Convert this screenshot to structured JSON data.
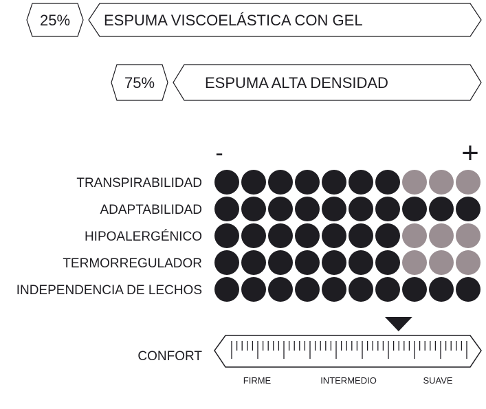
{
  "layers": [
    {
      "percent": "25%",
      "label": "ESPUMA VISCOELÁSTICA CON GEL"
    },
    {
      "percent": "75%",
      "label": "ESPUMA ALTA DENSIDAD"
    }
  ],
  "scale": {
    "minus_label": "-",
    "plus_label": "+",
    "max_dots": 10
  },
  "ratings": [
    {
      "label": "TRANSPIRABILIDAD",
      "value": 7
    },
    {
      "label": "ADAPTABILIDAD",
      "value": 10
    },
    {
      "label": "HIPOALERGÉNICO",
      "value": 7
    },
    {
      "label": "TERMORREGULADOR",
      "value": 7
    },
    {
      "label": "INDEPENDENCIA DE LECHOS",
      "value": 10
    }
  ],
  "comfort": {
    "label": "CONFORT",
    "level": 0.71,
    "markers": [
      "FIRME",
      "INTERMEDIO",
      "SUAVE"
    ]
  },
  "colors": {
    "filled": "#1e1d22",
    "empty": "#9a8e92",
    "outline": "#1e1d22"
  }
}
